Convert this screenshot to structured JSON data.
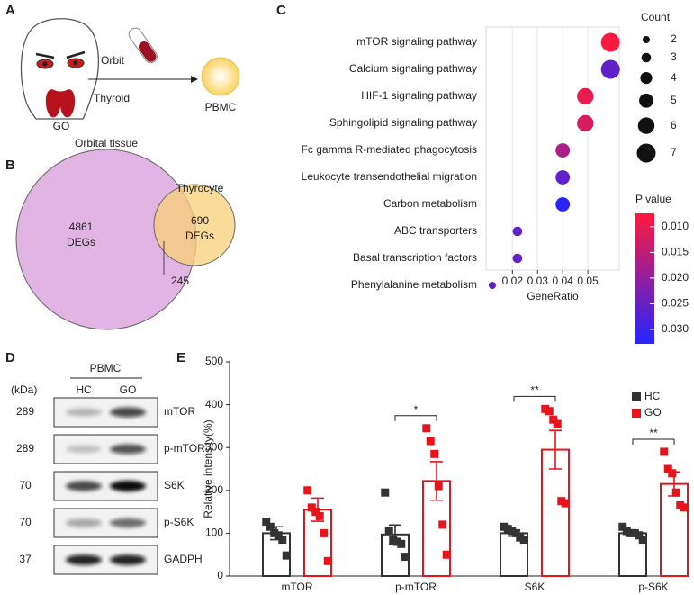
{
  "panels": {
    "a": {
      "label": "A",
      "orbit": "Orbit",
      "thyroid": "Thyroid",
      "go": "GO",
      "pbmc": "PBMC"
    },
    "b": {
      "label": "B",
      "left_title": "Orbital tissue",
      "right_title": "Thyrocyte",
      "left_count": "4861",
      "left_unit": "DEGs",
      "right_count": "690",
      "right_unit": "DEGs",
      "overlap": "245"
    },
    "c": {
      "label": "C"
    },
    "d": {
      "label": "D",
      "unit": "(kDa)",
      "sample": "PBMC",
      "lanes": [
        "HC",
        "GO"
      ],
      "rows": [
        {
          "kda": "289",
          "protein": "mTOR"
        },
        {
          "kda": "289",
          "protein": "p-mTOR"
        },
        {
          "kda": "70",
          "protein": "S6K"
        },
        {
          "kda": "70",
          "protein": "p-S6K"
        },
        {
          "kda": "37",
          "protein": "GADPH"
        }
      ]
    },
    "e": {
      "label": "E"
    }
  },
  "chart_data": [
    {
      "type": "dot",
      "categories": [
        "mTOR signaling pathway",
        "Calcium signaling pathway",
        "HIF-1 signaling pathway",
        "Sphingolipid signaling pathway",
        "Fc gamma R-mediated phagocytosis",
        "Leukocyte transendothelial migration",
        "Carbon metabolism",
        "ABC transporters",
        "Basal transcription factors",
        "Phenylalanine metabolism"
      ],
      "x": [
        0.059,
        0.059,
        0.049,
        0.049,
        0.04,
        0.04,
        0.04,
        0.022,
        0.022,
        0.012
      ],
      "counts": [
        7,
        7,
        6,
        6,
        5,
        5,
        5,
        3,
        3,
        2
      ],
      "p_values": [
        0.008,
        0.026,
        0.01,
        0.012,
        0.017,
        0.026,
        0.032,
        0.026,
        0.025,
        0.026
      ],
      "xlabel": "GeneRatio",
      "xlim": [
        0.0095,
        0.0625
      ],
      "xticks": [
        0.02,
        0.03,
        0.04,
        0.05
      ],
      "grid": true,
      "size_legend": {
        "title": "Count",
        "values": [
          2,
          3,
          4,
          5,
          6,
          7
        ]
      },
      "color_legend": {
        "title": "P value",
        "clim": [
          0.0074,
          0.0328
        ],
        "low_color": "#ff1a3c",
        "high_color": "#2424ff",
        "ticks": [
          {
            "value": 0.01,
            "label": "0.010"
          },
          {
            "value": 0.015,
            "label": "0.015"
          },
          {
            "value": 0.02,
            "label": "0.020"
          },
          {
            "value": 0.025,
            "label": "0.025"
          },
          {
            "value": 0.03,
            "label": "0.030"
          }
        ]
      }
    },
    {
      "type": "bar",
      "categories": [
        "mTOR",
        "p-mTOR",
        "S6K",
        "p-S6K"
      ],
      "ylabel": "Relative intensity(%)",
      "ylim": [
        0,
        500
      ],
      "yticks": [
        0,
        100,
        200,
        300,
        400,
        500
      ],
      "legend": "upper right",
      "series": [
        {
          "name": "HC",
          "color": "#333333",
          "values": [
            100,
            97,
            100,
            100
          ],
          "errors": [
            15,
            22,
            7,
            5
          ],
          "points": [
            [
              127,
              115,
              100,
              95,
              85,
              48
            ],
            [
              195,
              105,
              85,
              80,
              75,
              45
            ],
            [
              115,
              110,
              105,
              100,
              90,
              85
            ],
            [
              115,
              105,
              100,
              100,
              95,
              85
            ]
          ]
        },
        {
          "name": "GO",
          "color": "#e8141c",
          "values": [
            155,
            222,
            295,
            215
          ],
          "errors": [
            27,
            45,
            45,
            28
          ],
          "points": [
            [
              200,
              160,
              150,
              140,
              100,
              35
            ],
            [
              345,
              315,
              285,
              210,
              120,
              50
            ],
            [
              390,
              385,
              365,
              355,
              175,
              170
            ],
            [
              290,
              250,
              240,
              195,
              165,
              160
            ]
          ]
        }
      ],
      "annotations": [
        {
          "text": "*",
          "category": "p-mTOR"
        },
        {
          "text": "**",
          "category": "S6K"
        },
        {
          "text": "**",
          "category": "p-S6K"
        }
      ]
    }
  ]
}
